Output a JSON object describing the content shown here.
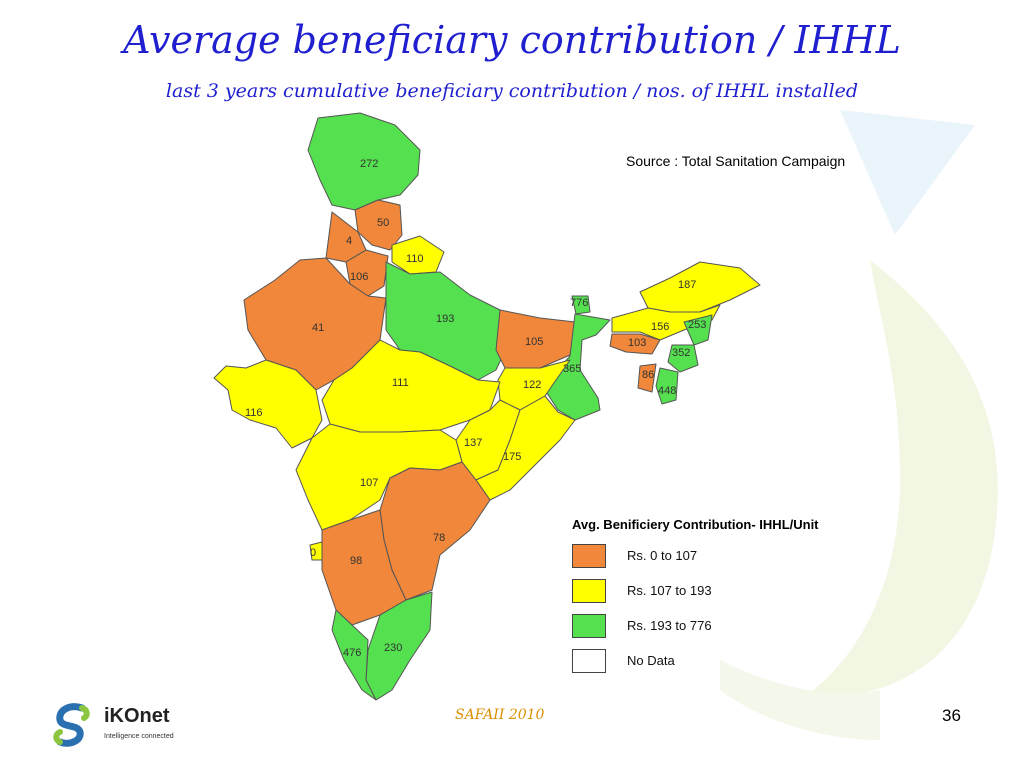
{
  "slide": {
    "title": "Average beneficiary contribution / IHHL",
    "subtitle": "last 3 years cumulative beneficiary contribution / nos. of IHHL installed",
    "source": "Source : Total Sanitation Campaign",
    "footer_center": "SAFAII 2010",
    "slide_number": "36"
  },
  "logo": {
    "name": "iKOnet",
    "tagline": "Intelligence connected",
    "icon": "ikonet-s-icon"
  },
  "colors": {
    "range_low": "#f0873a",
    "range_mid": "#ffff00",
    "range_high": "#55e04f",
    "no_data": "#ffffff",
    "title": "#1f1fd0"
  },
  "legend": {
    "title": "Avg. Benificiery Contribution- IHHL/Unit",
    "items": [
      {
        "label": "Rs. 0 to 107",
        "color": "#f0873a"
      },
      {
        "label": "Rs. 107 to 193",
        "color": "#ffff00"
      },
      {
        "label": "Rs. 193 to 776",
        "color": "#55e04f"
      },
      {
        "label": "No Data",
        "color": "#ffffff"
      }
    ]
  },
  "map": {
    "values": [
      "272",
      "50",
      "4",
      "110",
      "106",
      "193",
      "776",
      "187",
      "156",
      "253",
      "103",
      "352",
      "86",
      "448",
      "41",
      "105",
      "365",
      "122",
      "111",
      "116",
      "137",
      "175",
      "107",
      "78",
      "0",
      "98",
      "230",
      "476"
    ]
  }
}
